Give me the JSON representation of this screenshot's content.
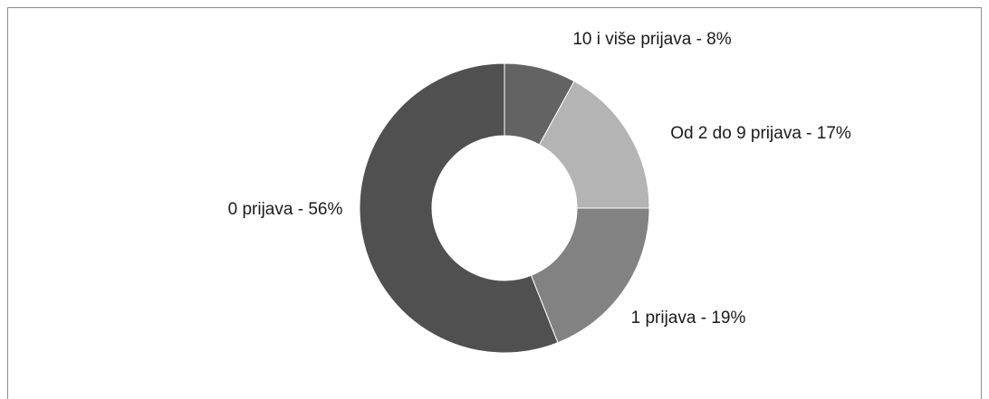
{
  "chart_data": {
    "type": "donut",
    "values": [
      8,
      17,
      19,
      56
    ],
    "value_labels": [
      "10 i više prijava - 8%",
      "Od 2 do 9 prijava - 17%",
      "1 prijava - 19%",
      "0 prijava - 56%"
    ],
    "colors": [
      "#636363",
      "#b4b4b4",
      "#828282",
      "#505050"
    ]
  }
}
